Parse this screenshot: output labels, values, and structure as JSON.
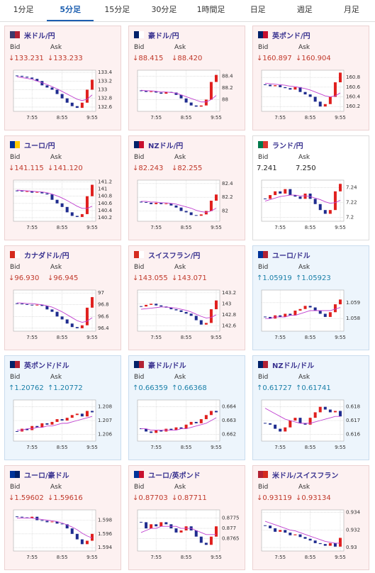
{
  "tabs": [
    "1分足",
    "5分足",
    "15分足",
    "30分足",
    "1時間足",
    "日足",
    "週足",
    "月足"
  ],
  "selected_tab": 1,
  "labels": {
    "bid": "Bid",
    "ask": "Ask"
  },
  "cards": [
    {
      "trend": "down",
      "bid": "↓133.231",
      "ask": "↓133.233",
      "flag": [
        "#3c3b6e",
        "#b22234"
      ]
    },
    {
      "trend": "down",
      "bid": "↓88.415",
      "ask": "↓88.420",
      "flag": [
        "#012169",
        "#ffffff"
      ]
    },
    {
      "trend": "down",
      "bid": "↓160.897",
      "ask": "↓160.904",
      "flag": [
        "#012169",
        "#c8102e"
      ]
    },
    {
      "trend": "down",
      "bid": "↓141.115",
      "ask": "↓141.120",
      "flag": [
        "#003399",
        "#ffcc00"
      ]
    },
    {
      "trend": "down",
      "bid": "↓82.243",
      "ask": "↓82.255",
      "flag": [
        "#012169",
        "#c8102e"
      ]
    },
    {
      "trend": "none",
      "bid": "7.241",
      "ask": "7.250",
      "flag": [
        "#007a4d",
        "#de3831"
      ]
    },
    {
      "trend": "down",
      "bid": "↓96.930",
      "ask": "↓96.945",
      "flag": [
        "#d52b1e",
        "#ffffff"
      ]
    },
    {
      "trend": "down",
      "bid": "↓143.055",
      "ask": "↓143.071",
      "flag": [
        "#d52b1e",
        "#ffffff"
      ]
    },
    {
      "trend": "up",
      "bid": "↑1.05919",
      "ask": "↑1.05923",
      "flag": [
        "#003399",
        "#b22234"
      ]
    },
    {
      "trend": "up",
      "bid": "↑1.20762",
      "ask": "↑1.20772",
      "flag": [
        "#012169",
        "#b22234"
      ]
    },
    {
      "trend": "up",
      "bid": "↑0.66359",
      "ask": "↑0.66368",
      "flag": [
        "#012169",
        "#b22234"
      ]
    },
    {
      "trend": "up",
      "bid": "↑0.61727",
      "ask": "↑0.61741",
      "flag": [
        "#012169",
        "#b22234"
      ]
    },
    {
      "trend": "down",
      "bid": "↓1.59602",
      "ask": "↓1.59616",
      "flag": [
        "#003399",
        "#012169"
      ]
    },
    {
      "trend": "down",
      "bid": "↓0.87703",
      "ask": "↓0.87711",
      "flag": [
        "#003399",
        "#c8102e"
      ]
    },
    {
      "trend": "down",
      "bid": "↓0.93119",
      "ask": "↓0.93134",
      "flag": [
        "#b22234",
        "#d52b1e"
      ]
    }
  ],
  "chart_data": [
    {
      "type": "candlestick",
      "title": "米ドル/円",
      "categories": [
        null,
        null,
        null,
        "7:55",
        null,
        null,
        null,
        null,
        null,
        "8:55",
        null,
        null,
        null,
        null,
        null,
        "9:55"
      ],
      "ylim": [
        132.5,
        133.45
      ],
      "yticks": [
        132.6,
        132.8,
        133,
        133.2,
        133.4
      ],
      "close": [
        133.32,
        133.3,
        133.28,
        133.25,
        133.2,
        133.1,
        133.05,
        133.0,
        132.9,
        132.8,
        132.7,
        132.62,
        132.58,
        132.7,
        133.0,
        133.23
      ],
      "ma": [
        133.3,
        133.28,
        133.26,
        133.24,
        133.2,
        133.16,
        133.12,
        133.07,
        133.02,
        132.96,
        132.9,
        132.84,
        132.78,
        132.75,
        132.78,
        132.88
      ],
      "up_color": "#e0201e",
      "down_color": "#1f2c8f",
      "ma_color": "#c040d0",
      "grid": true
    },
    {
      "type": "candlestick",
      "title": "豪ドル/円",
      "categories": [
        null,
        null,
        null,
        "7:55",
        null,
        null,
        null,
        null,
        null,
        "8:55",
        null,
        null,
        null,
        null,
        null,
        "9:55"
      ],
      "ylim": [
        87.8,
        88.5
      ],
      "yticks": [
        88,
        88.2,
        88.4
      ],
      "close": [
        88.15,
        88.13,
        88.14,
        88.12,
        88.1,
        88.13,
        88.12,
        88.08,
        88.02,
        87.95,
        87.9,
        87.88,
        87.9,
        88.0,
        88.3,
        88.42
      ],
      "ma": [
        88.16,
        88.15,
        88.15,
        88.14,
        88.13,
        88.13,
        88.12,
        88.11,
        88.08,
        88.05,
        88.02,
        87.99,
        87.96,
        87.96,
        88.0,
        88.07
      ],
      "up_color": "#e0201e",
      "down_color": "#1f2c8f",
      "ma_color": "#c040d0",
      "grid": true
    },
    {
      "type": "candlestick",
      "title": "英ポンド/円",
      "categories": [
        null,
        null,
        null,
        "7:55",
        null,
        null,
        null,
        null,
        null,
        "8:55",
        null,
        null,
        null,
        null,
        null,
        "9:55"
      ],
      "ylim": [
        160.1,
        160.95
      ],
      "yticks": [
        160.2,
        160.4,
        160.6,
        160.8
      ],
      "close": [
        160.65,
        160.62,
        160.64,
        160.6,
        160.58,
        160.55,
        160.6,
        160.5,
        160.45,
        160.4,
        160.3,
        160.2,
        160.25,
        160.4,
        160.7,
        160.9
      ],
      "ma": [
        160.68,
        160.67,
        160.66,
        160.65,
        160.64,
        160.62,
        160.61,
        160.59,
        160.57,
        160.54,
        160.5,
        160.46,
        160.42,
        160.4,
        160.42,
        160.48
      ],
      "up_color": "#e0201e",
      "down_color": "#1f2c8f",
      "ma_color": "#c040d0",
      "grid": true
    },
    {
      "type": "candlestick",
      "title": "ユーロ/円",
      "categories": [
        null,
        null,
        null,
        "7:55",
        null,
        null,
        null,
        null,
        null,
        "8:55",
        null,
        null,
        null,
        null,
        null,
        "9:55"
      ],
      "ylim": [
        140.1,
        141.25
      ],
      "yticks": [
        140.2,
        140.4,
        140.6,
        140.8,
        141,
        141.2
      ],
      "close": [
        140.95,
        140.93,
        140.94,
        140.9,
        140.92,
        140.88,
        140.85,
        140.7,
        140.6,
        140.5,
        140.35,
        140.25,
        140.22,
        140.3,
        140.8,
        141.12
      ],
      "ma": [
        140.97,
        140.96,
        140.95,
        140.94,
        140.93,
        140.92,
        140.9,
        140.86,
        140.81,
        140.75,
        140.68,
        140.6,
        140.52,
        140.46,
        140.46,
        140.52
      ],
      "up_color": "#e0201e",
      "down_color": "#1f2c8f",
      "ma_color": "#c040d0",
      "grid": true
    },
    {
      "type": "candlestick",
      "title": "NZドル/円",
      "categories": [
        null,
        null,
        null,
        "7:55",
        null,
        null,
        null,
        null,
        null,
        "8:55",
        null,
        null,
        null,
        null,
        null,
        "9:55"
      ],
      "ylim": [
        81.85,
        82.45
      ],
      "yticks": [
        82,
        82.2,
        82.4
      ],
      "close": [
        82.13,
        82.12,
        82.1,
        82.12,
        82.1,
        82.11,
        82.08,
        82.05,
        82.0,
        81.98,
        81.94,
        81.93,
        81.95,
        82.0,
        82.15,
        82.24
      ],
      "ma": [
        82.14,
        82.14,
        82.13,
        82.13,
        82.12,
        82.12,
        82.11,
        82.1,
        82.08,
        82.06,
        82.04,
        82.01,
        81.99,
        81.98,
        82.0,
        82.04
      ],
      "up_color": "#e0201e",
      "down_color": "#1f2c8f",
      "ma_color": "#c040d0",
      "grid": true
    },
    {
      "type": "candlestick",
      "title": "ランド/円",
      "categories": [
        null,
        null,
        null,
        "7:55",
        null,
        null,
        null,
        null,
        null,
        "8:55",
        null,
        null,
        null,
        null,
        null,
        "9:55"
      ],
      "ylim": [
        7.195,
        7.25
      ],
      "yticks": [
        7.2,
        7.22,
        7.24
      ],
      "close": [
        7.225,
        7.23,
        7.235,
        7.232,
        7.238,
        7.23,
        7.228,
        7.225,
        7.232,
        7.225,
        7.218,
        7.21,
        7.205,
        7.21,
        7.235,
        7.245
      ],
      "ma": [
        7.222,
        7.224,
        7.226,
        7.228,
        7.229,
        7.23,
        7.23,
        7.229,
        7.229,
        7.228,
        7.226,
        7.224,
        7.221,
        7.219,
        7.22,
        7.223
      ],
      "up_color": "#e0201e",
      "down_color": "#1f2c8f",
      "ma_color": "#c040d0",
      "grid": true
    },
    {
      "type": "candlestick",
      "title": "カナダドル/円",
      "categories": [
        null,
        null,
        null,
        "7:55",
        null,
        null,
        null,
        null,
        null,
        "8:55",
        null,
        null,
        null,
        null,
        null,
        "9:55"
      ],
      "ylim": [
        96.35,
        97.05
      ],
      "yticks": [
        96.4,
        96.6,
        96.8,
        97
      ],
      "close": [
        96.82,
        96.81,
        96.8,
        96.79,
        96.8,
        96.78,
        96.72,
        96.68,
        96.6,
        96.55,
        96.48,
        96.42,
        96.4,
        96.45,
        96.75,
        96.93
      ],
      "ma": [
        96.83,
        96.83,
        96.82,
        96.82,
        96.81,
        96.8,
        96.78,
        96.76,
        96.72,
        96.68,
        96.63,
        96.58,
        96.53,
        96.5,
        96.52,
        96.58
      ],
      "up_color": "#e0201e",
      "down_color": "#1f2c8f",
      "ma_color": "#c040d0",
      "grid": true
    },
    {
      "type": "candlestick",
      "title": "スイスフラン/円",
      "categories": [
        null,
        null,
        null,
        "7:55",
        null,
        null,
        null,
        null,
        null,
        "8:55",
        null,
        null,
        null,
        null,
        null,
        "9:55"
      ],
      "ylim": [
        142.5,
        143.25
      ],
      "yticks": [
        142.6,
        142.8,
        143,
        143.2
      ],
      "close": [
        142.95,
        142.98,
        143.0,
        142.97,
        142.95,
        142.93,
        142.9,
        142.88,
        142.85,
        142.82,
        142.78,
        142.7,
        142.62,
        142.65,
        142.9,
        143.06
      ],
      "ma": [
        142.9,
        142.91,
        142.92,
        142.93,
        142.94,
        142.94,
        142.93,
        142.92,
        142.9,
        142.88,
        142.85,
        142.81,
        142.77,
        142.74,
        142.75,
        142.8
      ],
      "up_color": "#e0201e",
      "down_color": "#1f2c8f",
      "ma_color": "#c040d0",
      "grid": true
    },
    {
      "type": "candlestick",
      "title": "ユーロ/ドル",
      "categories": [
        null,
        null,
        null,
        "7:55",
        null,
        null,
        null,
        null,
        null,
        "8:55",
        null,
        null,
        null,
        null,
        null,
        "9:55"
      ],
      "ylim": [
        1.0572,
        1.0598
      ],
      "yticks": [
        1.058,
        1.059
      ],
      "close": [
        1.0581,
        1.058,
        1.0582,
        1.0581,
        1.0583,
        1.0582,
        1.0585,
        1.0586,
        1.0588,
        1.0587,
        1.0585,
        1.0583,
        1.0581,
        1.0584,
        1.0589,
        1.0592
      ],
      "ma": [
        1.058,
        1.058,
        1.0581,
        1.0581,
        1.0581,
        1.0582,
        1.0582,
        1.0583,
        1.0584,
        1.0585,
        1.0585,
        1.0585,
        1.0585,
        1.0585,
        1.0586,
        1.0587
      ],
      "up_color": "#e0201e",
      "down_color": "#1f2c8f",
      "ma_color": "#c040d0",
      "grid": true
    },
    {
      "type": "candlestick",
      "title": "英ポンド/ドル",
      "categories": [
        null,
        null,
        null,
        "7:55",
        null,
        null,
        null,
        null,
        null,
        "8:55",
        null,
        null,
        null,
        null,
        null,
        "9:55"
      ],
      "ylim": [
        1.2055,
        1.2085
      ],
      "yticks": [
        1.206,
        1.207,
        1.208
      ],
      "close": [
        1.2062,
        1.2064,
        1.2063,
        1.2066,
        1.2065,
        1.2068,
        1.2067,
        1.2069,
        1.2071,
        1.207,
        1.2072,
        1.2074,
        1.2075,
        1.2073,
        1.2077,
        1.2076
      ],
      "ma": [
        1.2063,
        1.2063,
        1.2064,
        1.2064,
        1.2065,
        1.2065,
        1.2066,
        1.2066,
        1.2067,
        1.2068,
        1.2068,
        1.2069,
        1.207,
        1.2071,
        1.2072,
        1.2073
      ],
      "up_color": "#e0201e",
      "down_color": "#1f2c8f",
      "ma_color": "#c040d0",
      "grid": true
    },
    {
      "type": "candlestick",
      "title": "豪ドル/ドル",
      "categories": [
        null,
        null,
        null,
        "7:55",
        null,
        null,
        null,
        null,
        null,
        "8:55",
        null,
        null,
        null,
        null,
        null,
        "9:55"
      ],
      "ylim": [
        0.6615,
        0.6645
      ],
      "yticks": [
        0.662,
        0.663,
        0.664
      ],
      "close": [
        0.6624,
        0.6622,
        0.6621,
        0.6623,
        0.6622,
        0.6624,
        0.6623,
        0.6625,
        0.6624,
        0.6627,
        0.6629,
        0.6628,
        0.6631,
        0.6634,
        0.6637,
        0.6636
      ],
      "ma": [
        0.6624,
        0.6624,
        0.6623,
        0.6623,
        0.6623,
        0.6623,
        0.6623,
        0.6623,
        0.6624,
        0.6624,
        0.6625,
        0.6626,
        0.6627,
        0.6628,
        0.663,
        0.6632
      ],
      "up_color": "#e0201e",
      "down_color": "#1f2c8f",
      "ma_color": "#c040d0",
      "grid": true
    },
    {
      "type": "candlestick",
      "title": "NZドル/ドル",
      "categories": [
        null,
        null,
        null,
        "7:55",
        null,
        null,
        null,
        null,
        null,
        "8:55",
        null,
        null,
        null,
        null,
        null,
        "9:55"
      ],
      "ylim": [
        0.6155,
        0.6185
      ],
      "yticks": [
        0.616,
        0.617,
        0.618
      ],
      "close": [
        0.6168,
        0.6167,
        0.6164,
        0.6162,
        0.6165,
        0.617,
        0.6172,
        0.6168,
        0.6167,
        0.6172,
        0.6176,
        0.618,
        0.6178,
        0.6176,
        0.6177,
        0.6173
      ],
      "ma": [
        0.6179,
        0.6177,
        0.6175,
        0.6173,
        0.6171,
        0.617,
        0.6169,
        0.6168,
        0.6168,
        0.6168,
        0.6169,
        0.617,
        0.6171,
        0.6172,
        0.6173,
        0.6173
      ],
      "up_color": "#e0201e",
      "down_color": "#1f2c8f",
      "ma_color": "#c040d0",
      "grid": true
    },
    {
      "type": "candlestick",
      "title": "ユーロ/豪ドル",
      "categories": [
        null,
        null,
        null,
        "7:55",
        null,
        null,
        null,
        null,
        null,
        "8:55",
        null,
        null,
        null,
        null,
        null,
        "9:55"
      ],
      "ylim": [
        1.5935,
        1.5995
      ],
      "yticks": [
        1.594,
        1.596,
        1.598
      ],
      "close": [
        1.5985,
        1.5984,
        1.5983,
        1.5985,
        1.598,
        1.5979,
        1.5977,
        1.5978,
        1.5975,
        1.5974,
        1.5968,
        1.596,
        1.5952,
        1.5945,
        1.595,
        1.596
      ],
      "ma": [
        1.5983,
        1.5983,
        1.5983,
        1.5983,
        1.5982,
        1.5981,
        1.598,
        1.5979,
        1.5978,
        1.5976,
        1.5973,
        1.597,
        1.5966,
        1.5961,
        1.5957,
        1.5954
      ],
      "up_color": "#e0201e",
      "down_color": "#1f2c8f",
      "ma_color": "#c040d0",
      "grid": true
    },
    {
      "type": "candlestick",
      "title": "ユーロ/英ポンド",
      "categories": [
        null,
        null,
        null,
        "7:55",
        null,
        null,
        null,
        null,
        null,
        "8:55",
        null,
        null,
        null,
        null,
        null,
        "9:55"
      ],
      "ylim": [
        0.8759,
        0.8779
      ],
      "yticks": [
        0.8765,
        0.877,
        0.8775
      ],
      "close": [
        0.8773,
        0.877,
        0.8772,
        0.8771,
        0.8773,
        0.8772,
        0.877,
        0.8768,
        0.8769,
        0.8771,
        0.8769,
        0.8766,
        0.8763,
        0.8762,
        0.8766,
        0.8771
      ],
      "ma": [
        0.8768,
        0.8769,
        0.877,
        0.877,
        0.8771,
        0.8771,
        0.8771,
        0.8771,
        0.877,
        0.877,
        0.877,
        0.8769,
        0.8768,
        0.8767,
        0.8767,
        0.8767
      ],
      "up_color": "#e0201e",
      "down_color": "#1f2c8f",
      "ma_color": "#c040d0",
      "grid": true
    },
    {
      "type": "candlestick",
      "title": "米ドル/スイスフラン",
      "categories": [
        null,
        null,
        null,
        "7:55",
        null,
        null,
        null,
        null,
        null,
        "8:55",
        null,
        null,
        null,
        null,
        null,
        "9:55"
      ],
      "ylim": [
        0.9296,
        0.9343
      ],
      "yticks": [
        0.93,
        0.932,
        0.934
      ],
      "close": [
        0.9325,
        0.9322,
        0.9318,
        0.932,
        0.9317,
        0.9314,
        0.9315,
        0.9312,
        0.931,
        0.9308,
        0.9305,
        0.9304,
        0.9302,
        0.9305,
        0.9301,
        0.9311
      ],
      "ma": [
        0.933,
        0.9328,
        0.9326,
        0.9324,
        0.9322,
        0.932,
        0.9319,
        0.9317,
        0.9315,
        0.9313,
        0.9311,
        0.9309,
        0.9307,
        0.9306,
        0.9305,
        0.9305
      ],
      "up_color": "#e0201e",
      "down_color": "#1f2c8f",
      "ma_color": "#c040d0",
      "grid": true
    }
  ]
}
